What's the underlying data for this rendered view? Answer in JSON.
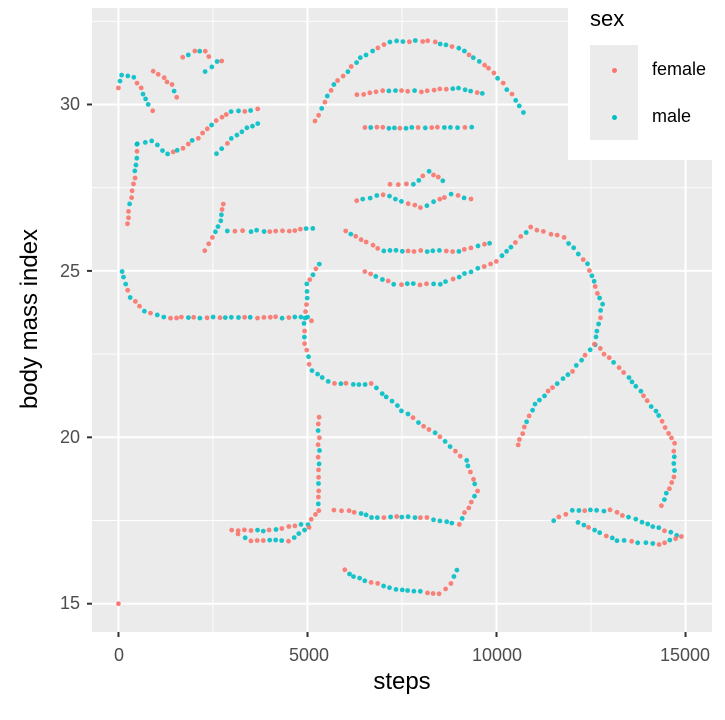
{
  "chart_data": {
    "type": "scatter",
    "title": "",
    "xlabel": "steps",
    "ylabel": "body mass index",
    "xlim": [
      -700,
      15700
    ],
    "ylim": [
      14.15,
      32.9
    ],
    "x_ticks": [
      0,
      5000,
      10000,
      15000
    ],
    "x_tick_labels": [
      "0",
      "5000",
      "10000",
      "15000"
    ],
    "y_ticks": [
      15,
      20,
      25,
      30
    ],
    "y_tick_labels": [
      "15",
      "20",
      "25",
      "30"
    ],
    "grid": true,
    "legend": {
      "title": "sex",
      "position": "right-top",
      "entries": [
        "female",
        "male"
      ]
    },
    "series": [
      {
        "name": "female",
        "color": "#F8766D"
      },
      {
        "name": "male",
        "color": "#00BFC4"
      }
    ],
    "description": "Points trace the outline of a gorilla waving; isolated point at (0, 15).",
    "outline_paths_data_coords": [
      {
        "name": "waving-hand-fingers",
        "points": [
          [
            0,
            30.5
          ],
          [
            100,
            30.9
          ],
          [
            400,
            30.8
          ],
          [
            600,
            30.5
          ],
          [
            800,
            30.0
          ],
          [
            1000,
            29.6
          ]
        ]
      },
      {
        "name": "finger-2",
        "points": [
          [
            900,
            31.0
          ],
          [
            1200,
            30.8
          ],
          [
            1400,
            30.6
          ],
          [
            1600,
            30.0
          ]
        ]
      },
      {
        "name": "finger-3",
        "points": [
          [
            1700,
            31.4
          ],
          [
            2000,
            31.6
          ],
          [
            2300,
            31.6
          ],
          [
            2500,
            31.3
          ]
        ]
      },
      {
        "name": "finger-4",
        "points": [
          [
            2300,
            31.0
          ],
          [
            2600,
            31.3
          ],
          [
            2900,
            31.3
          ]
        ]
      },
      {
        "name": "hand-lower",
        "points": [
          [
            500,
            28.8
          ],
          [
            900,
            28.9
          ],
          [
            1300,
            28.5
          ],
          [
            1700,
            28.7
          ],
          [
            2100,
            29.0
          ],
          [
            2600,
            29.5
          ],
          [
            3000,
            29.8
          ],
          [
            3500,
            29.8
          ],
          [
            3900,
            29.9
          ]
        ]
      },
      {
        "name": "thumb",
        "points": [
          [
            2600,
            28.5
          ],
          [
            3000,
            29.0
          ],
          [
            3400,
            29.3
          ],
          [
            3800,
            29.5
          ]
        ]
      },
      {
        "name": "forearm-left",
        "points": [
          [
            500,
            28.8
          ],
          [
            450,
            28.0
          ],
          [
            300,
            27.0
          ],
          [
            200,
            26.2
          ]
        ]
      },
      {
        "name": "arm-lower",
        "points": [
          [
            100,
            25.0
          ],
          [
            300,
            24.2
          ],
          [
            700,
            23.8
          ],
          [
            1200,
            23.6
          ],
          [
            2000,
            23.6
          ],
          [
            3000,
            23.6
          ],
          [
            4000,
            23.6
          ],
          [
            5000,
            23.6
          ],
          [
            5200,
            23.4
          ]
        ]
      },
      {
        "name": "arm-upper",
        "points": [
          [
            2900,
            26.2
          ],
          [
            3500,
            26.2
          ],
          [
            4500,
            26.2
          ],
          [
            5300,
            26.3
          ]
        ]
      },
      {
        "name": "wrist-inner",
        "points": [
          [
            2300,
            25.6
          ],
          [
            2500,
            26.0
          ],
          [
            2700,
            26.5
          ],
          [
            2800,
            27.2
          ]
        ]
      },
      {
        "name": "head-top",
        "points": [
          [
            5200,
            29.5
          ],
          [
            5700,
            30.6
          ],
          [
            6400,
            31.4
          ],
          [
            7200,
            31.9
          ],
          [
            8200,
            31.9
          ],
          [
            9000,
            31.7
          ],
          [
            9800,
            31.1
          ],
          [
            10400,
            30.3
          ],
          [
            10800,
            29.6
          ]
        ]
      },
      {
        "name": "brow",
        "points": [
          [
            6300,
            30.3
          ],
          [
            7000,
            30.4
          ],
          [
            8000,
            30.4
          ],
          [
            9000,
            30.5
          ],
          [
            9800,
            30.3
          ]
        ]
      },
      {
        "name": "eyes",
        "points": [
          [
            6500,
            29.3
          ],
          [
            7300,
            29.3
          ],
          [
            8100,
            29.3
          ],
          [
            8800,
            29.3
          ],
          [
            9500,
            29.3
          ]
        ]
      },
      {
        "name": "nose",
        "points": [
          [
            7200,
            27.6
          ],
          [
            7800,
            27.6
          ],
          [
            8200,
            28.0
          ],
          [
            8700,
            27.6
          ]
        ]
      },
      {
        "name": "mouth",
        "points": [
          [
            6300,
            27.1
          ],
          [
            7000,
            27.3
          ],
          [
            8000,
            26.9
          ],
          [
            8800,
            27.3
          ],
          [
            9500,
            27.1
          ]
        ]
      },
      {
        "name": "chin",
        "points": [
          [
            6000,
            26.2
          ],
          [
            7000,
            25.6
          ],
          [
            8000,
            25.6
          ],
          [
            9000,
            25.6
          ],
          [
            10000,
            25.9
          ]
        ]
      },
      {
        "name": "torso-left",
        "points": [
          [
            5300,
            25.2
          ],
          [
            5000,
            24.6
          ],
          [
            4900,
            23.0
          ],
          [
            5100,
            22.0
          ],
          [
            5700,
            21.6
          ],
          [
            6700,
            21.6
          ]
        ]
      },
      {
        "name": "belly",
        "points": [
          [
            6500,
            25.0
          ],
          [
            7300,
            24.6
          ],
          [
            8500,
            24.6
          ],
          [
            10000,
            25.3
          ],
          [
            10900,
            26.3
          ]
        ]
      },
      {
        "name": "right-arm",
        "points": [
          [
            10900,
            26.3
          ],
          [
            11800,
            26.0
          ],
          [
            12400,
            25.2
          ],
          [
            12800,
            24.0
          ],
          [
            12600,
            22.8
          ],
          [
            12000,
            22.0
          ],
          [
            11000,
            21.0
          ],
          [
            10500,
            19.6
          ]
        ]
      },
      {
        "name": "right-arm-outer",
        "points": [
          [
            12600,
            22.8
          ],
          [
            13500,
            21.8
          ],
          [
            14200,
            20.8
          ],
          [
            14700,
            19.8
          ],
          [
            14700,
            18.8
          ],
          [
            14300,
            17.8
          ]
        ]
      },
      {
        "name": "leg-left",
        "points": [
          [
            5300,
            20.6
          ],
          [
            5300,
            19.0
          ],
          [
            5300,
            17.8
          ],
          [
            5000,
            17.4
          ],
          [
            4000,
            17.2
          ],
          [
            3000,
            17.2
          ],
          [
            3500,
            16.9
          ],
          [
            4500,
            16.9
          ],
          [
            5200,
            17.4
          ]
        ]
      },
      {
        "name": "leg-inner",
        "points": [
          [
            6700,
            21.6
          ],
          [
            7500,
            20.8
          ],
          [
            8500,
            20.0
          ],
          [
            9200,
            19.3
          ],
          [
            9500,
            18.4
          ],
          [
            9000,
            17.4
          ],
          [
            8000,
            17.6
          ],
          [
            6700,
            17.6
          ],
          [
            6100,
            17.8
          ],
          [
            5500,
            17.8
          ]
        ]
      },
      {
        "name": "right-foot",
        "points": [
          [
            11500,
            17.5
          ],
          [
            12000,
            17.8
          ],
          [
            13000,
            17.8
          ],
          [
            14000,
            17.4
          ],
          [
            14900,
            17.0
          ],
          [
            14300,
            16.8
          ],
          [
            13200,
            16.9
          ],
          [
            12000,
            17.5
          ]
        ]
      },
      {
        "name": "toes-under",
        "points": [
          [
            6000,
            16.0
          ],
          [
            6200,
            15.8
          ],
          [
            7500,
            15.4
          ],
          [
            8500,
            15.3
          ],
          [
            8800,
            15.6
          ],
          [
            9000,
            16.2
          ]
        ]
      },
      {
        "name": "outlier",
        "points": [
          [
            0,
            15.0
          ]
        ]
      }
    ]
  }
}
